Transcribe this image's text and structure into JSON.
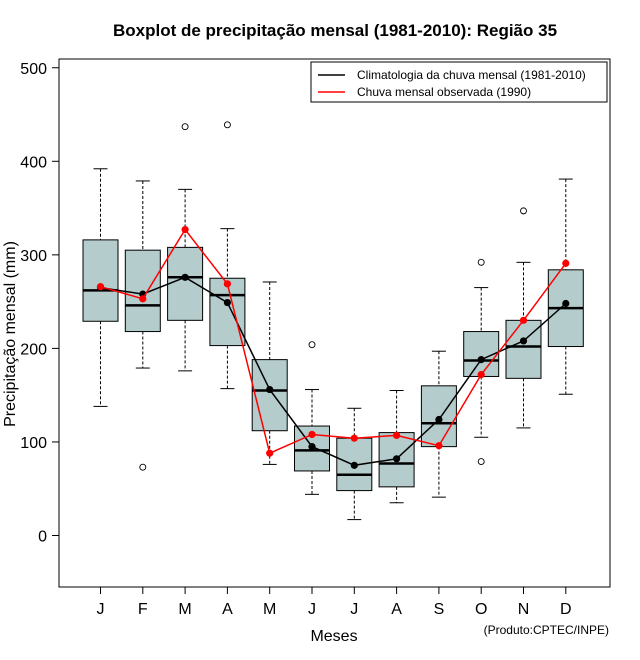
{
  "chart_data": {
    "type": "boxplot",
    "title": "Boxplot de precipitação mensal (1981-2010): Região 35",
    "xlabel": "Meses",
    "ylabel": "Precipitação mensal (mm)",
    "ylim": [
      -55,
      510
    ],
    "yticks": [
      0,
      100,
      200,
      300,
      400,
      500
    ],
    "categories": [
      "J",
      "F",
      "M",
      "A",
      "M",
      "J",
      "J",
      "A",
      "S",
      "O",
      "N",
      "D"
    ],
    "boxes": [
      {
        "whisker_low": 138,
        "q1": 229,
        "median": 262,
        "q3": 316,
        "whisker_high": 392,
        "outliers": []
      },
      {
        "whisker_low": 179,
        "q1": 218,
        "median": 246,
        "q3": 305,
        "whisker_high": 379,
        "outliers": [
          73
        ]
      },
      {
        "whisker_low": 176,
        "q1": 230,
        "median": 276,
        "q3": 308,
        "whisker_high": 370,
        "outliers": [
          437
        ]
      },
      {
        "whisker_low": 157,
        "q1": 203,
        "median": 257,
        "q3": 275,
        "whisker_high": 328,
        "outliers": [
          439
        ]
      },
      {
        "whisker_low": 76,
        "q1": 112,
        "median": 155,
        "q3": 188,
        "whisker_high": 271,
        "outliers": []
      },
      {
        "whisker_low": 44,
        "q1": 69,
        "median": 91,
        "q3": 117,
        "whisker_high": 156,
        "outliers": [
          204
        ]
      },
      {
        "whisker_low": 17,
        "q1": 48,
        "median": 65,
        "q3": 104,
        "whisker_high": 136,
        "outliers": []
      },
      {
        "whisker_low": 35,
        "q1": 52,
        "median": 77,
        "q3": 110,
        "whisker_high": 155,
        "outliers": []
      },
      {
        "whisker_low": 41,
        "q1": 95,
        "median": 120,
        "q3": 160,
        "whisker_high": 197,
        "outliers": []
      },
      {
        "whisker_low": 105,
        "q1": 170,
        "median": 187,
        "q3": 218,
        "whisker_high": 265,
        "outliers": [
          292,
          79
        ]
      },
      {
        "whisker_low": 115,
        "q1": 168,
        "median": 202,
        "q3": 230,
        "whisker_high": 292,
        "outliers": [
          347
        ]
      },
      {
        "whisker_low": 151,
        "q1": 202,
        "median": 243,
        "q3": 284,
        "whisker_high": 381,
        "outliers": []
      }
    ],
    "series": [
      {
        "name": "Climatologia da chuva mensal (1981-2010)",
        "color": "#000000",
        "values": [
          265,
          258,
          276,
          249,
          156,
          95,
          75,
          82,
          124,
          188,
          208,
          248
        ]
      },
      {
        "name": "Chuva mensal observada (1990)",
        "color": "#ff0000",
        "values": [
          266,
          253,
          327,
          269,
          88,
          108,
          104,
          107,
          96,
          172,
          230,
          291
        ]
      }
    ],
    "box_fill": "#b5cccc",
    "legend_position": "top-right",
    "credit": "(Produto:CPTEC/INPE)"
  }
}
